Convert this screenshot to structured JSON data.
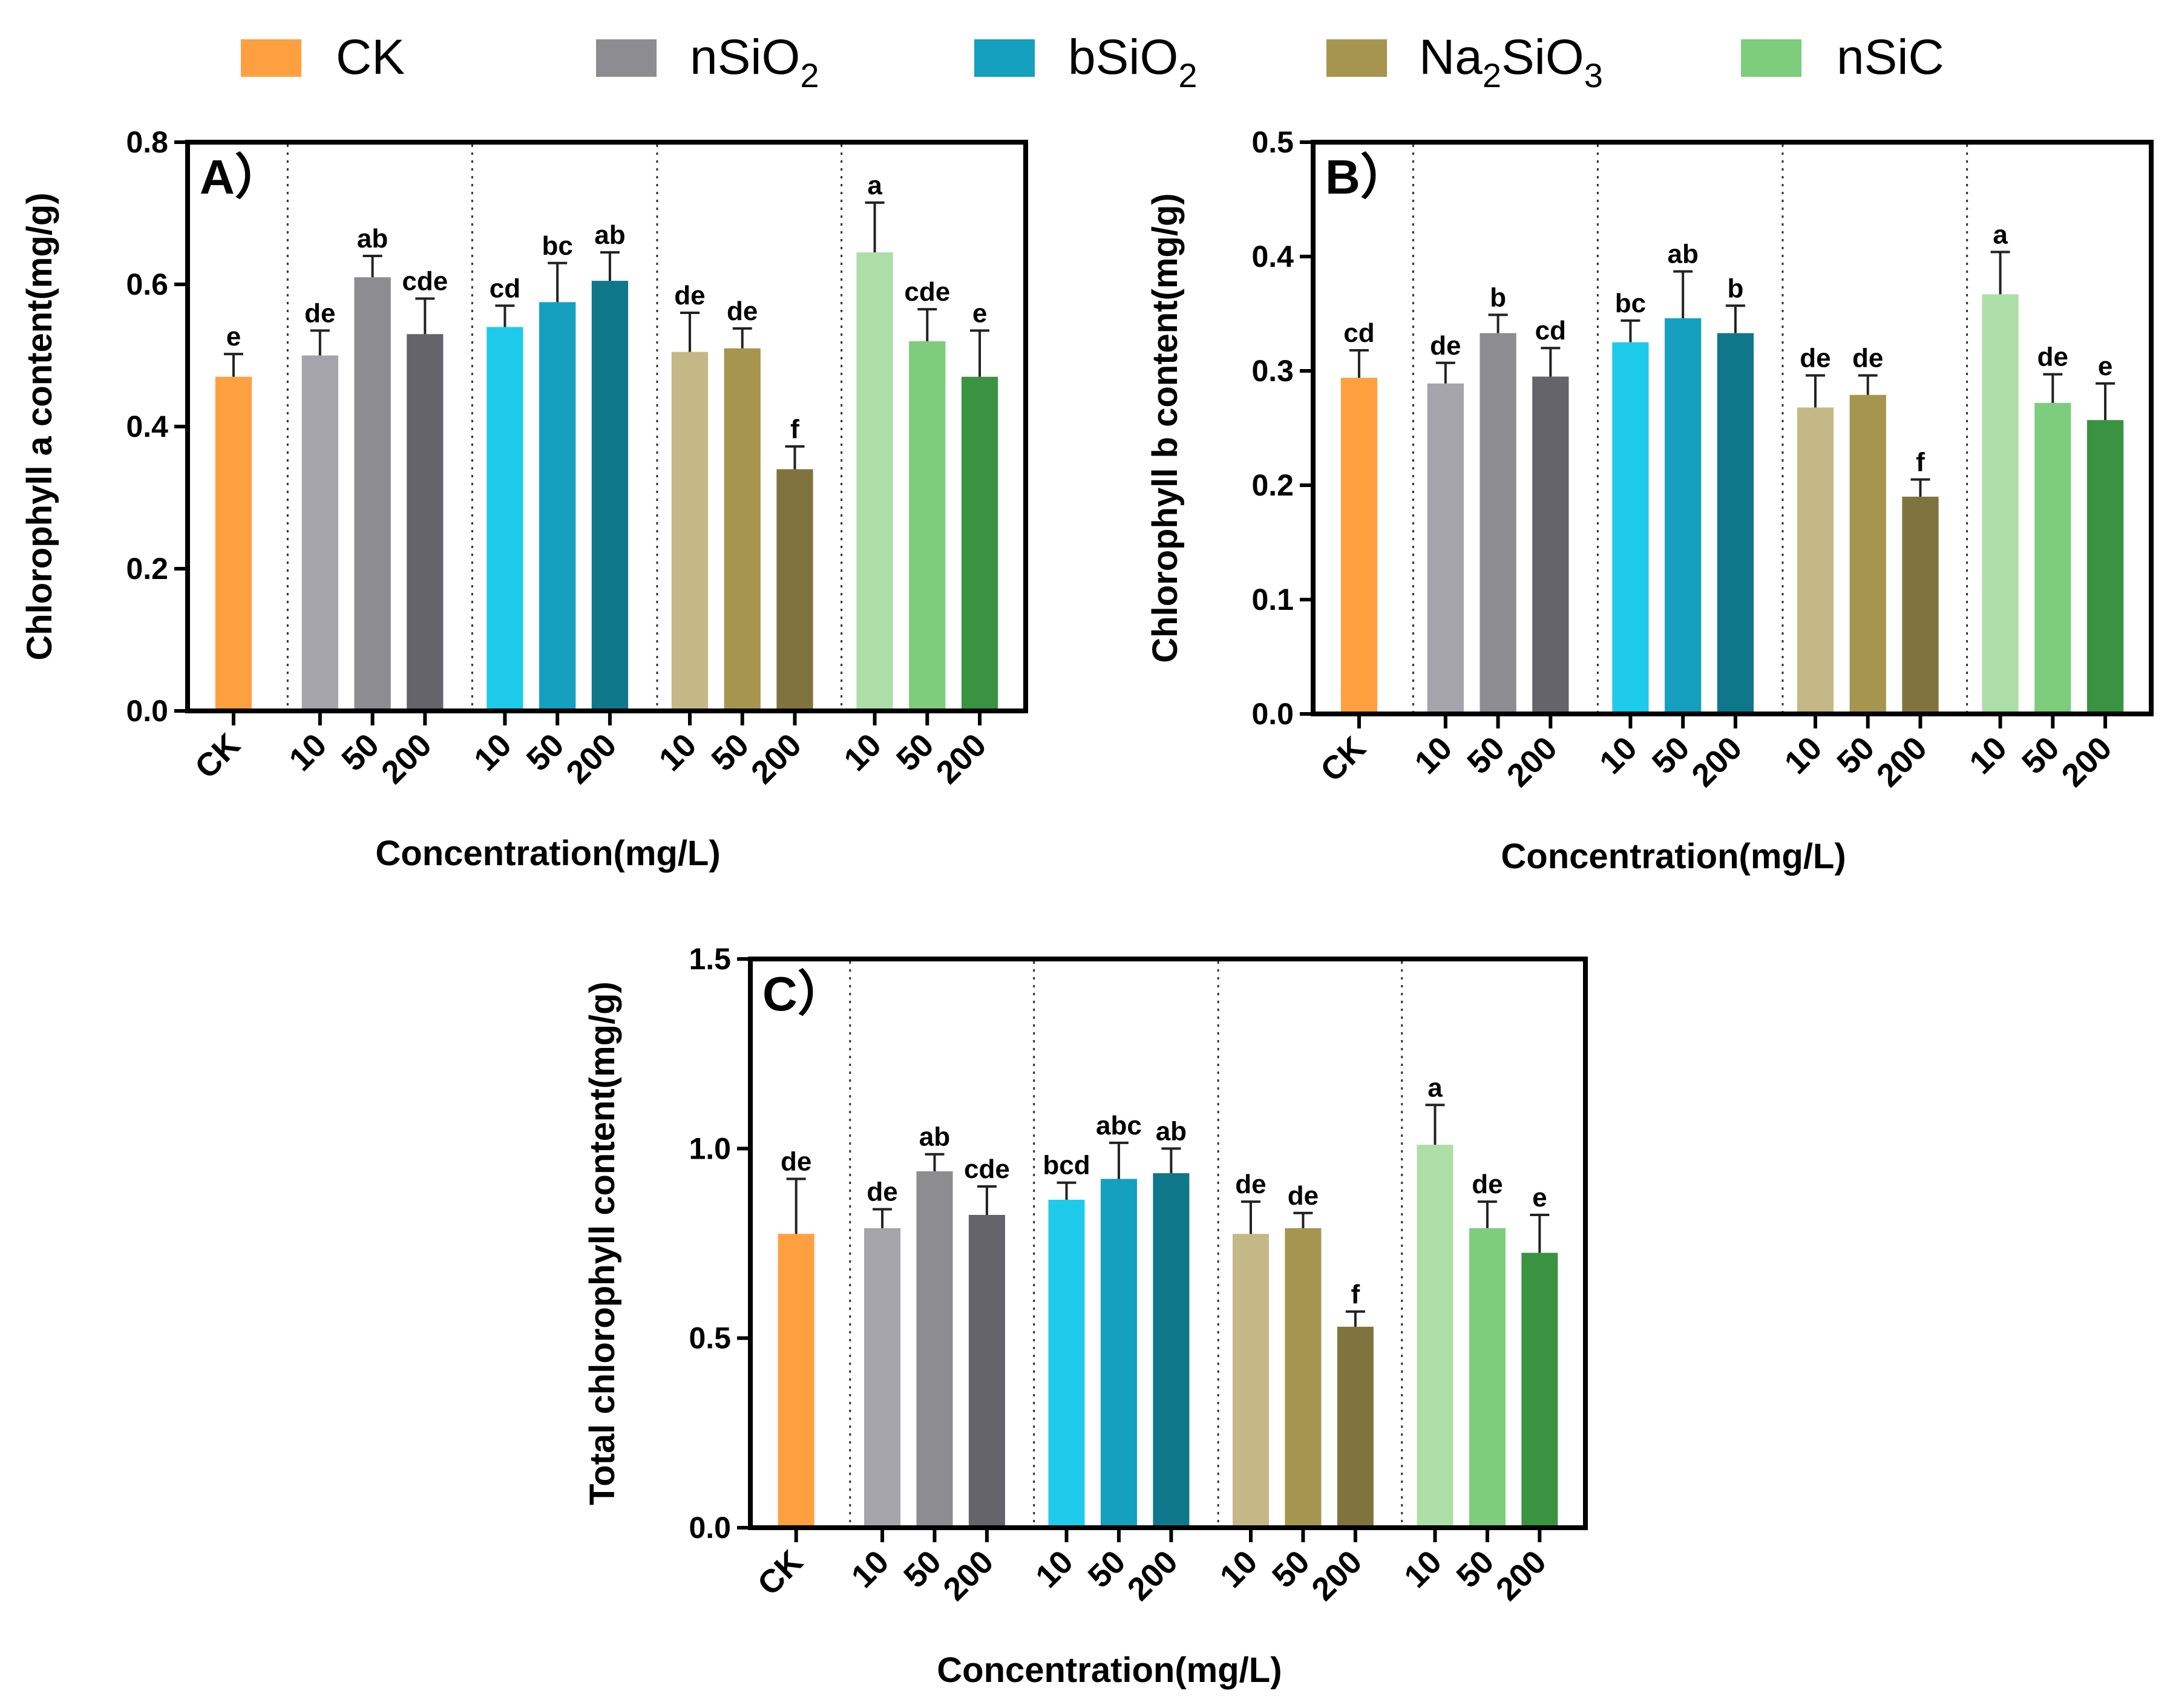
{
  "legend": [
    {
      "label": "CK",
      "color": "#FFA040"
    },
    {
      "label": "nSiO",
      "sub": "2",
      "color": "#8C8C91"
    },
    {
      "label": "bSiO",
      "sub": "2",
      "color": "#14A0BE"
    },
    {
      "label": "Na",
      "sub": "2",
      "label2": "SiO",
      "sub2": "3",
      "color": "#A6954F"
    },
    {
      "label": "nSiC",
      "color": "#7DCD7D"
    }
  ],
  "chart_data": [
    {
      "type": "bar",
      "panel": "A）",
      "title": "",
      "xlabel": "Concentration(mg/L)",
      "ylabel": "Chlorophyll a content(mg/g)",
      "ylim": [
        0,
        0.8
      ],
      "yticks": [
        "0.0",
        "0.2",
        "0.4",
        "0.6",
        "0.8"
      ],
      "categories": [
        "CK",
        "10",
        "50",
        "200",
        "10",
        "50",
        "200",
        "10",
        "50",
        "200",
        "10",
        "50",
        "200"
      ],
      "groups": [
        "CK",
        "nSiO2",
        "nSiO2",
        "nSiO2",
        "bSiO2",
        "bSiO2",
        "bSiO2",
        "Na2SiO3",
        "Na2SiO3",
        "Na2SiO3",
        "nSiC",
        "nSiC",
        "nSiC"
      ],
      "values": [
        0.47,
        0.5,
        0.61,
        0.53,
        0.54,
        0.575,
        0.605,
        0.505,
        0.51,
        0.34,
        0.645,
        0.52,
        0.47
      ],
      "errors": [
        0.032,
        0.035,
        0.03,
        0.05,
        0.03,
        0.055,
        0.04,
        0.055,
        0.028,
        0.032,
        0.07,
        0.045,
        0.065
      ],
      "letters": [
        "e",
        "de",
        "ab",
        "cde",
        "cd",
        "bc",
        "ab",
        "de",
        "de",
        "f",
        "a",
        "cde",
        "e"
      ],
      "colors": [
        "#FFA040",
        "#A5A4AA",
        "#8C8C91",
        "#64646A",
        "#1ECBEB",
        "#14A0BE",
        "#0E7789",
        "#C4B886",
        "#A6954F",
        "#80743E",
        "#ADDEA7",
        "#7DCD7D",
        "#3A9341"
      ]
    },
    {
      "type": "bar",
      "panel": "B）",
      "title": "",
      "xlabel": "Concentration(mg/L)",
      "ylabel": "Chlorophyll b content(mg/g)",
      "ylim": [
        0,
        0.5
      ],
      "yticks": [
        "0.0",
        "0.1",
        "0.2",
        "0.3",
        "0.4",
        "0.5"
      ],
      "categories": [
        "CK",
        "10",
        "50",
        "200",
        "10",
        "50",
        "200",
        "10",
        "50",
        "200",
        "10",
        "50",
        "200"
      ],
      "groups": [
        "CK",
        "nSiO2",
        "nSiO2",
        "nSiO2",
        "bSiO2",
        "bSiO2",
        "bSiO2",
        "Na2SiO3",
        "Na2SiO3",
        "Na2SiO3",
        "nSiC",
        "nSiC",
        "nSiC"
      ],
      "values": [
        0.294,
        0.289,
        0.333,
        0.295,
        0.325,
        0.346,
        0.333,
        0.268,
        0.279,
        0.19,
        0.367,
        0.272,
        0.257
      ],
      "errors": [
        0.024,
        0.018,
        0.016,
        0.025,
        0.019,
        0.041,
        0.024,
        0.028,
        0.017,
        0.015,
        0.037,
        0.025,
        0.032
      ],
      "letters": [
        "cd",
        "de",
        "b",
        "cd",
        "bc",
        "ab",
        "b",
        "de",
        "de",
        "f",
        "a",
        "de",
        "e"
      ],
      "colors": [
        "#FFA040",
        "#A5A4AA",
        "#8C8C91",
        "#64646A",
        "#1ECBEB",
        "#14A0BE",
        "#0E7789",
        "#C4B886",
        "#A6954F",
        "#80743E",
        "#ADDEA7",
        "#7DCD7D",
        "#3A9341"
      ]
    },
    {
      "type": "bar",
      "panel": "C）",
      "title": "",
      "xlabel": "Concentration(mg/L)",
      "ylabel": "Total chlorophyll content(mg/g)",
      "ylim": [
        0,
        1.5
      ],
      "yticks": [
        "0.0",
        "0.5",
        "1.0",
        "1.5"
      ],
      "categories": [
        "CK",
        "10",
        "50",
        "200",
        "10",
        "50",
        "200",
        "10",
        "50",
        "200",
        "10",
        "50",
        "200"
      ],
      "groups": [
        "CK",
        "nSiO2",
        "nSiO2",
        "nSiO2",
        "bSiO2",
        "bSiO2",
        "bSiO2",
        "Na2SiO3",
        "Na2SiO3",
        "Na2SiO3",
        "nSiC",
        "nSiC",
        "nSiC"
      ],
      "values": [
        0.775,
        0.79,
        0.94,
        0.825,
        0.865,
        0.92,
        0.935,
        0.775,
        0.79,
        0.53,
        1.01,
        0.79,
        0.725
      ],
      "errors": [
        0.145,
        0.05,
        0.045,
        0.075,
        0.045,
        0.095,
        0.065,
        0.085,
        0.04,
        0.04,
        0.105,
        0.07,
        0.1
      ],
      "letters": [
        "de",
        "de",
        "ab",
        "cde",
        "bcd",
        "abc",
        "ab",
        "de",
        "de",
        "f",
        "a",
        "de",
        "e"
      ],
      "colors": [
        "#FFA040",
        "#A5A4AA",
        "#8C8C91",
        "#64646A",
        "#1ECBEB",
        "#14A0BE",
        "#0E7789",
        "#C4B886",
        "#A6954F",
        "#80743E",
        "#ADDEA7",
        "#7DCD7D",
        "#3A9341"
      ]
    }
  ]
}
